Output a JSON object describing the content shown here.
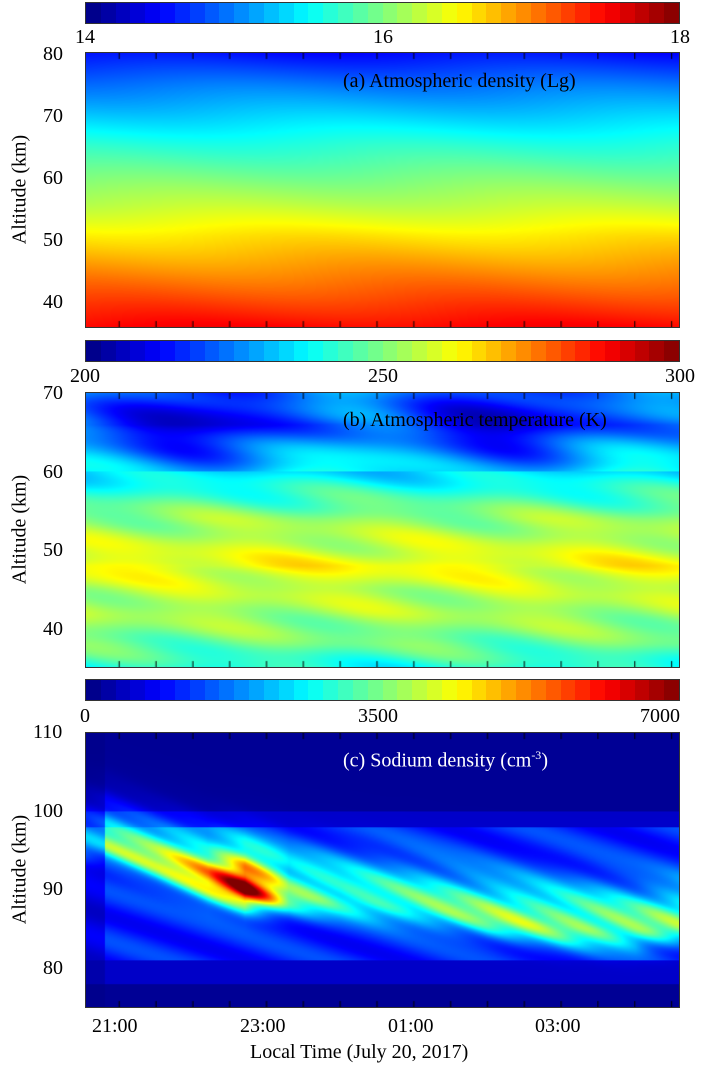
{
  "chart_data": [
    {
      "type": "heatmap",
      "title": "(a) Atmospheric density (Lg)",
      "ylabel": "Altitude (km)",
      "ylim": [
        35,
        80
      ],
      "yticks": [
        "80",
        "70",
        "60",
        "50",
        "40"
      ],
      "colorbar": {
        "range": [
          14,
          18
        ],
        "ticks": [
          "14",
          "16",
          "18"
        ]
      },
      "profile": {
        "altitude_km": [
          80,
          75,
          70,
          65,
          60,
          55,
          50,
          45,
          40,
          35
        ],
        "value": [
          14.55,
          14.95,
          15.3,
          15.65,
          15.95,
          16.25,
          16.6,
          16.9,
          17.2,
          17.5
        ]
      }
    },
    {
      "type": "heatmap",
      "title": "(b) Atmospheric temperature (K)",
      "ylabel": "Altitude (km)",
      "ylim": [
        35,
        70
      ],
      "yticks": [
        "70",
        "60",
        "50",
        "40"
      ],
      "colorbar": {
        "range": [
          200,
          300
        ],
        "ticks": [
          "200",
          "250",
          "300"
        ]
      },
      "profile": {
        "altitude_km": [
          70,
          66,
          62,
          58,
          54,
          50,
          48,
          45,
          42,
          38,
          35
        ],
        "value": [
          222,
          215,
          228,
          240,
          252,
          258,
          262,
          256,
          254,
          248,
          240
        ]
      }
    },
    {
      "type": "heatmap",
      "title": "(c) Sodium density (cm",
      "title_sup": "-3",
      "title_end": ")",
      "ylabel": "Altitude (km)",
      "ylim": [
        75,
        110
      ],
      "yticks": [
        "110",
        "100",
        "90",
        "80"
      ],
      "colorbar": {
        "range": [
          0,
          7000
        ],
        "ticks": [
          "0",
          "3500",
          "7000"
        ]
      },
      "layer": {
        "time_h": [
          20.8,
          21.5,
          22.2,
          22.7,
          23.3,
          24.0,
          25.0,
          26.0,
          27.0,
          28.0,
          28.6
        ],
        "peak_altitude_km": [
          96,
          93.5,
          91,
          90,
          89.5,
          89,
          88,
          86.5,
          85.5,
          85,
          85.5
        ],
        "peak_density": [
          2600,
          3200,
          4500,
          6800,
          2800,
          2300,
          2400,
          2800,
          2900,
          2800,
          2600
        ]
      }
    }
  ],
  "x_axis": {
    "label": "Local Time (July 20, 2017)",
    "ticks": [
      "21:00",
      "23:00",
      "01:00",
      "03:00"
    ],
    "range_h": [
      20.55,
      28.6
    ]
  }
}
